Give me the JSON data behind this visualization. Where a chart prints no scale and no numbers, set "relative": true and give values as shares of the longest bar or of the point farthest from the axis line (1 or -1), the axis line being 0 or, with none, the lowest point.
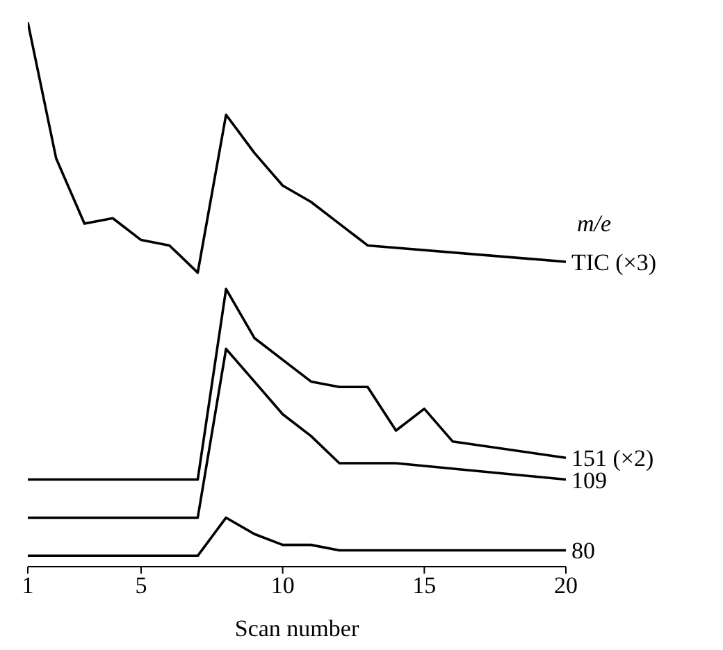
{
  "chart_data": {
    "type": "line",
    "xlabel": "Scan number",
    "legend_title": "m/e",
    "relative": true,
    "xlim": [
      1,
      20
    ],
    "xticks": [
      1,
      5,
      10,
      15,
      20
    ],
    "series": [
      {
        "name": "TIC (×3)",
        "color": "#000000",
        "x": [
          1,
          2,
          3,
          4,
          5,
          6,
          7,
          8,
          9,
          10,
          11,
          12,
          13,
          20
        ],
        "values": [
          1,
          0.75,
          0.63,
          0.64,
          0.6,
          0.59,
          0.54,
          0.83,
          0.76,
          0.7,
          0.67,
          0.63,
          0.59,
          0.56
        ]
      },
      {
        "name": "151 (×2)",
        "color": "#000000",
        "x": [
          1,
          7,
          8,
          9,
          10,
          11,
          12,
          13,
          14,
          15,
          16,
          20
        ],
        "values": [
          0.16,
          0.16,
          0.51,
          0.42,
          0.38,
          0.34,
          0.33,
          0.33,
          0.25,
          0.29,
          0.23,
          0.2
        ]
      },
      {
        "name": "109",
        "color": "#000000",
        "x": [
          1,
          7,
          8,
          9,
          10,
          11,
          12,
          14,
          20
        ],
        "values": [
          0.09,
          0.09,
          0.4,
          0.34,
          0.28,
          0.24,
          0.19,
          0.19,
          0.16
        ]
      },
      {
        "name": "80",
        "color": "#000000",
        "x": [
          1,
          7,
          8,
          9,
          10,
          11,
          12,
          20
        ],
        "values": [
          0.02,
          0.02,
          0.09,
          0.06,
          0.04,
          0.04,
          0.03,
          0.03
        ]
      }
    ]
  }
}
